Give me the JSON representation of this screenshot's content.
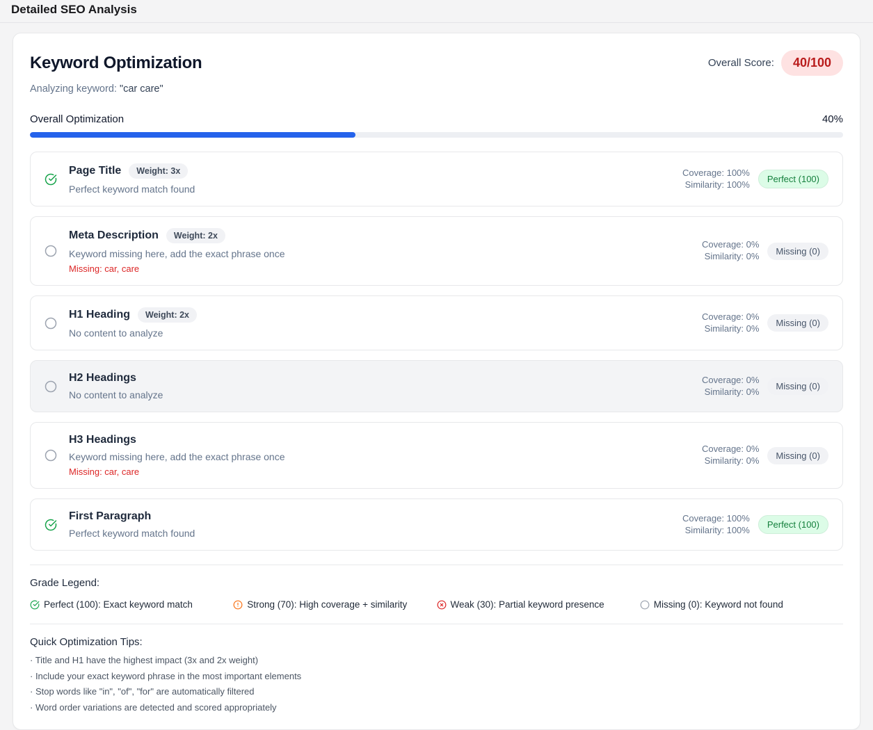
{
  "page": {
    "title": "Detailed SEO Analysis"
  },
  "card": {
    "title": "Keyword Optimization",
    "overall_score_label": "Overall Score:",
    "overall_score": "40/100",
    "analyzing_label": "Analyzing keyword:",
    "analyzing_keyword": "\"car care\"",
    "progress": {
      "label": "Overall Optimization",
      "value_label": "40%",
      "percent": 40
    }
  },
  "rows": [
    {
      "title": "Page Title",
      "weight": "Weight: 3x",
      "status": "Perfect keyword match found",
      "coverage": "Coverage: 100%",
      "similarity": "Similarity: 100%",
      "badge": "Perfect (100)",
      "badge_type": "perfect",
      "icon": "check-circle"
    },
    {
      "title": "Meta Description",
      "weight": "Weight: 2x",
      "status": "Keyword missing here, add the exact phrase once",
      "missing": "Missing: car, care",
      "coverage": "Coverage: 0%",
      "similarity": "Similarity: 0%",
      "badge": "Missing (0)",
      "badge_type": "missing",
      "icon": "circle"
    },
    {
      "title": "H1 Heading",
      "weight": "Weight: 2x",
      "status": "No content to analyze",
      "coverage": "Coverage: 0%",
      "similarity": "Similarity: 0%",
      "badge": "Missing (0)",
      "badge_type": "missing",
      "icon": "circle"
    },
    {
      "title": "H2 Headings",
      "status": "No content to analyze",
      "coverage": "Coverage: 0%",
      "similarity": "Similarity: 0%",
      "badge": "Missing (0)",
      "badge_type": "missing",
      "icon": "circle",
      "highlighted": true
    },
    {
      "title": "H3 Headings",
      "status": "Keyword missing here, add the exact phrase once",
      "missing": "Missing: car, care",
      "coverage": "Coverage: 0%",
      "similarity": "Similarity: 0%",
      "badge": "Missing (0)",
      "badge_type": "missing",
      "icon": "circle"
    },
    {
      "title": "First Paragraph",
      "status": "Perfect keyword match found",
      "coverage": "Coverage: 100%",
      "similarity": "Similarity: 100%",
      "badge": "Perfect (100)",
      "badge_type": "perfect",
      "icon": "check-circle"
    }
  ],
  "legend": {
    "title": "Grade Legend:",
    "items": [
      {
        "icon": "check-circle-icon",
        "color": "#16a34a",
        "label": "Perfect (100): Exact keyword match"
      },
      {
        "icon": "alert-circle-icon",
        "color": "#f97316",
        "label": "Strong (70): High coverage + similarity"
      },
      {
        "icon": "x-circle-icon",
        "color": "#dc2626",
        "label": "Weak (30): Partial keyword presence"
      },
      {
        "icon": "circle-icon",
        "color": "#9ca3af",
        "label": "Missing (0): Keyword not found"
      }
    ]
  },
  "tips": {
    "title": "Quick Optimization Tips:",
    "items": [
      "· Title and H1 have the highest impact (3x and 2x weight)",
      "· Include your exact keyword phrase in the most important elements",
      "· Stop words like \"in\", \"of\", \"for\" are automatically filtered",
      "· Word order variations are detected and scored appropriately"
    ]
  },
  "colors": {
    "progress_fill": "#2563eb",
    "score_badge_bg": "#fee2e2",
    "score_badge_text": "#b91c1c",
    "perfect_badge_bg": "#dcfce7",
    "perfect_badge_text": "#15803d",
    "missing_badge_bg": "#f1f2f5",
    "missing_badge_text": "#475569",
    "missing_text": "#dc2626",
    "success_icon": "#16a34a",
    "warning_icon": "#f97316",
    "error_icon": "#dc2626",
    "neutral_icon": "#9ca3af"
  }
}
